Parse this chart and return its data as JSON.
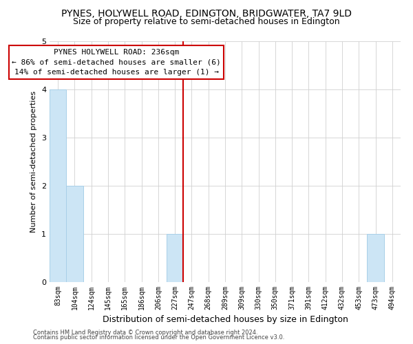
{
  "title": "PYNES, HOLYWELL ROAD, EDINGTON, BRIDGWATER, TA7 9LD",
  "subtitle": "Size of property relative to semi-detached houses in Edington",
  "xlabel": "Distribution of semi-detached houses by size in Edington",
  "ylabel": "Number of semi-detached properties",
  "bin_labels": [
    "83sqm",
    "104sqm",
    "124sqm",
    "145sqm",
    "165sqm",
    "186sqm",
    "206sqm",
    "227sqm",
    "247sqm",
    "268sqm",
    "289sqm",
    "309sqm",
    "330sqm",
    "350sqm",
    "371sqm",
    "391sqm",
    "412sqm",
    "432sqm",
    "453sqm",
    "473sqm",
    "494sqm"
  ],
  "bar_heights": [
    4,
    2,
    0,
    0,
    0,
    0,
    0,
    1,
    0,
    0,
    0,
    0,
    0,
    0,
    0,
    0,
    0,
    0,
    0,
    1,
    0
  ],
  "bar_color": "#cce5f5",
  "bar_edge_color": "#a8cfe8",
  "vline_x": 7.5,
  "vline_color": "#cc0000",
  "annotation_title": "PYNES HOLYWELL ROAD: 236sqm",
  "annotation_line1": "← 86% of semi-detached houses are smaller (6)",
  "annotation_line2": "14% of semi-detached houses are larger (1) →",
  "annotation_box_facecolor": "#ffffff",
  "annotation_box_edgecolor": "#cc0000",
  "ylim": [
    0,
    5
  ],
  "yticks": [
    0,
    1,
    2,
    3,
    4,
    5
  ],
  "footer1": "Contains HM Land Registry data © Crown copyright and database right 2024.",
  "footer2": "Contains public sector information licensed under the Open Government Licence v3.0.",
  "background_color": "#ffffff",
  "grid_color": "#d0d0d0",
  "title_fontsize": 10,
  "subtitle_fontsize": 9,
  "xlabel_fontsize": 9,
  "ylabel_fontsize": 8,
  "tick_fontsize": 7,
  "annotation_fontsize": 8,
  "footer_fontsize": 6
}
